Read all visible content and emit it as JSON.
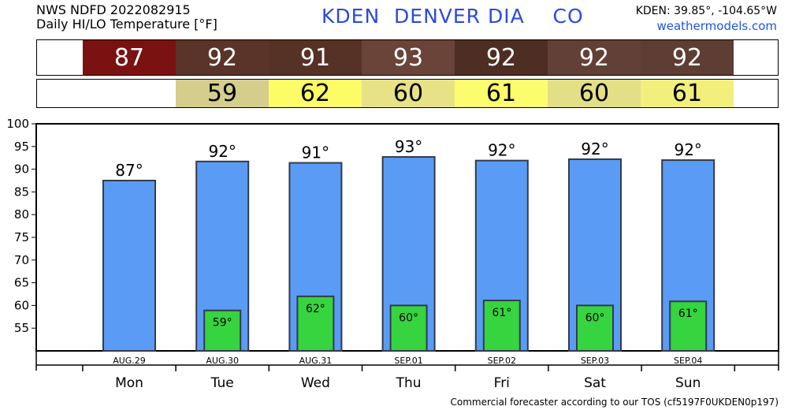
{
  "header": {
    "line1": "NWS NDFD 2022082915",
    "line2": "Daily HI/LO Temperature [°F]",
    "station": "KDEN  DENVER DIA    CO",
    "coords": "KDEN: 39.85°, -104.65°W",
    "site": "weathermodels.com"
  },
  "hi_row": {
    "values": [
      "87",
      "92",
      "91",
      "93",
      "92",
      "92",
      "92"
    ],
    "colors": [
      "#7a1212",
      "#5a3428",
      "#563126",
      "#6a4438",
      "#4e2e22",
      "#634036",
      "#5e3e32"
    ]
  },
  "lo_row": {
    "values": [
      "59",
      "62",
      "60",
      "61",
      "60",
      "61"
    ],
    "colors": [
      "#d4cd8c",
      "#fdfc66",
      "#e6e285",
      "#fdfc6e",
      "#e2df86",
      "#f2ef7c"
    ]
  },
  "footer": "Commercial forecaster according to our TOS (cf5197F0UKDEN0p197)",
  "chart_data": {
    "type": "bar",
    "categories": [
      "AUG.29",
      "AUG.30",
      "AUG.31",
      "SEP.01",
      "SEP.02",
      "SEP.03",
      "SEP.04"
    ],
    "days": [
      "Mon",
      "Tue",
      "Wed",
      "Thu",
      "Fri",
      "Sat",
      "Sun"
    ],
    "series": [
      {
        "values": [
          87.5,
          91.7,
          91.4,
          92.7,
          91.9,
          92.2,
          92.0
        ],
        "labels": [
          "87°",
          "92°",
          "91°",
          "93°",
          "92°",
          "92°",
          "92°"
        ],
        "color": "#5a9cf5"
      },
      {
        "values": [
          null,
          58.9,
          62.0,
          60.0,
          61.1,
          60.0,
          60.9
        ],
        "labels": [
          "",
          "59°",
          "62°",
          "60°",
          "61°",
          "60°",
          "61°"
        ],
        "color": "#36d43e"
      }
    ],
    "ylim": [
      50,
      100
    ],
    "yticks": [
      55,
      60,
      65,
      70,
      75,
      80,
      85,
      90,
      95,
      100
    ],
    "grid": false
  }
}
